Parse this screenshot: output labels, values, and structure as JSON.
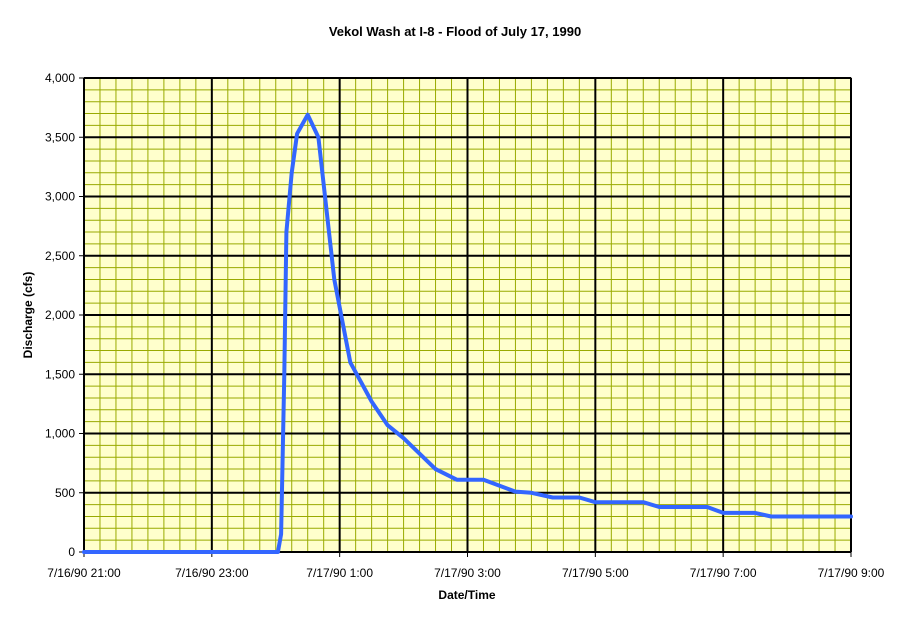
{
  "chart_data": {
    "type": "line",
    "title": "Vekol Wash at I-8  - Flood of July 17, 1990",
    "xlabel": "Date/Time",
    "ylabel": "Discharge (cfs)",
    "ylim": [
      0,
      4000
    ],
    "xlim": [
      "7/16/90 21:00",
      "7/17/90 9:00"
    ],
    "y_ticks": [
      "0",
      "500",
      "1,000",
      "1,500",
      "2,000",
      "2,500",
      "3,000",
      "3,500",
      "4,000"
    ],
    "x_ticks": [
      "7/16/90 21:00",
      "7/16/90 23:00",
      "7/17/90 1:00",
      "7/17/90 3:00",
      "7/17/90 5:00",
      "7/17/90 7:00",
      "7/17/90 9:00"
    ],
    "plot_background": "#FFFFCC",
    "minor_grid_color": "#99AA00",
    "major_grid_color": "#000000",
    "line_color": "#3366FF",
    "grid": true,
    "series": [
      {
        "points": [
          [
            "7/16/90 21:00",
            0
          ],
          [
            "7/17/90 0:00",
            0
          ],
          [
            "7/17/90 0:02",
            0
          ],
          [
            "7/17/90 0:05",
            150
          ],
          [
            "7/17/90 0:08",
            1500
          ],
          [
            "7/17/90 0:10",
            2700
          ],
          [
            "7/17/90 0:15",
            3200
          ],
          [
            "7/17/90 0:20",
            3530
          ],
          [
            "7/17/90 0:30",
            3690
          ],
          [
            "7/17/90 0:40",
            3500
          ],
          [
            "7/17/90 0:55",
            2300
          ],
          [
            "7/17/90 1:10",
            1600
          ],
          [
            "7/17/90 1:30",
            1270
          ],
          [
            "7/17/90 1:45",
            1070
          ],
          [
            "7/17/90 2:00",
            960
          ],
          [
            "7/17/90 2:30",
            700
          ],
          [
            "7/17/90 2:50",
            610
          ],
          [
            "7/17/90 3:15",
            610
          ],
          [
            "7/17/90 3:45",
            510
          ],
          [
            "7/17/90 4:00",
            500
          ],
          [
            "7/17/90 4:20",
            460
          ],
          [
            "7/17/90 4:45",
            460
          ],
          [
            "7/17/90 5:00",
            420
          ],
          [
            "7/17/90 5:45",
            420
          ],
          [
            "7/17/90 6:00",
            380
          ],
          [
            "7/17/90 6:45",
            380
          ],
          [
            "7/17/90 7:00",
            330
          ],
          [
            "7/17/90 7:30",
            330
          ],
          [
            "7/17/90 7:45",
            300
          ],
          [
            "7/17/90 9:00",
            300
          ]
        ]
      }
    ]
  }
}
